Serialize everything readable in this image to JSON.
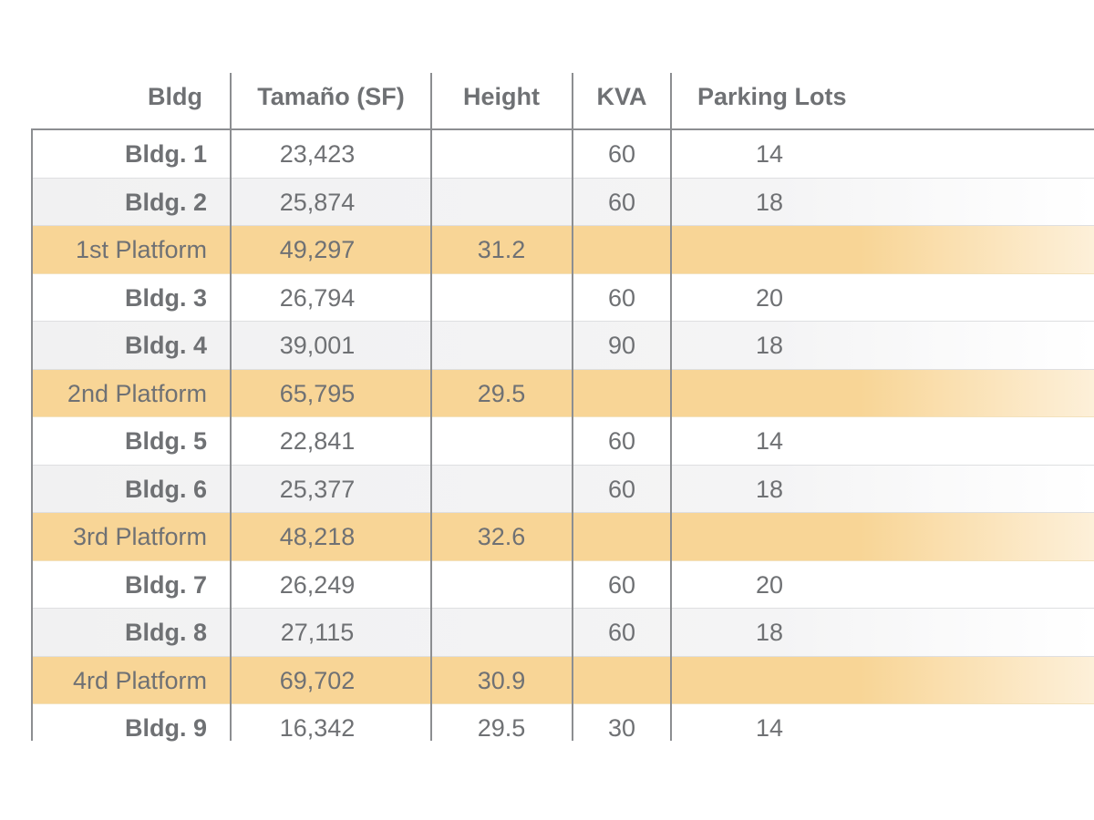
{
  "columns": [
    "Bldg",
    "Tamaño (SF)",
    "Height",
    "KVA",
    "Parking Lots"
  ],
  "rows": [
    {
      "bldg": "Bldg. 1",
      "size": "23,423",
      "height": "",
      "kva": "60",
      "parking": "14",
      "type": "bldg"
    },
    {
      "bldg": "Bldg. 2",
      "size": "25,874",
      "height": "",
      "kva": "60",
      "parking": "18",
      "type": "bldg"
    },
    {
      "bldg": "1st Platform",
      "size": "49,297",
      "height": "31.2",
      "kva": "",
      "parking": "",
      "type": "platform"
    },
    {
      "bldg": "Bldg. 3",
      "size": "26,794",
      "height": "",
      "kva": "60",
      "parking": "20",
      "type": "bldg"
    },
    {
      "bldg": "Bldg. 4",
      "size": "39,001",
      "height": "",
      "kva": "90",
      "parking": "18",
      "type": "bldg"
    },
    {
      "bldg": "2nd Platform",
      "size": "65,795",
      "height": "29.5",
      "kva": "",
      "parking": "",
      "type": "platform"
    },
    {
      "bldg": "Bldg. 5",
      "size": "22,841",
      "height": "",
      "kva": "60",
      "parking": "14",
      "type": "bldg"
    },
    {
      "bldg": "Bldg. 6",
      "size": "25,377",
      "height": "",
      "kva": "60",
      "parking": "18",
      "type": "bldg"
    },
    {
      "bldg": "3rd Platform",
      "size": "48,218",
      "height": "32.6",
      "kva": "",
      "parking": "",
      "type": "platform"
    },
    {
      "bldg": "Bldg. 7",
      "size": "26,249",
      "height": "",
      "kva": "60",
      "parking": "20",
      "type": "bldg"
    },
    {
      "bldg": "Bldg. 8",
      "size": "27,115",
      "height": "",
      "kva": "60",
      "parking": "18",
      "type": "bldg"
    },
    {
      "bldg": "4rd Platform",
      "size": "69,702",
      "height": "30.9",
      "kva": "",
      "parking": "",
      "type": "platform"
    },
    {
      "bldg": "Bldg. 9",
      "size": "16,342",
      "height": "29.5",
      "kva": "30",
      "parking": "14",
      "type": "bldg"
    }
  ],
  "colors": {
    "text": "#6f7174",
    "platform_fill": "#f8d596",
    "stripe_fill": "#f1f1f2",
    "grid_line": "#8c8e91"
  }
}
